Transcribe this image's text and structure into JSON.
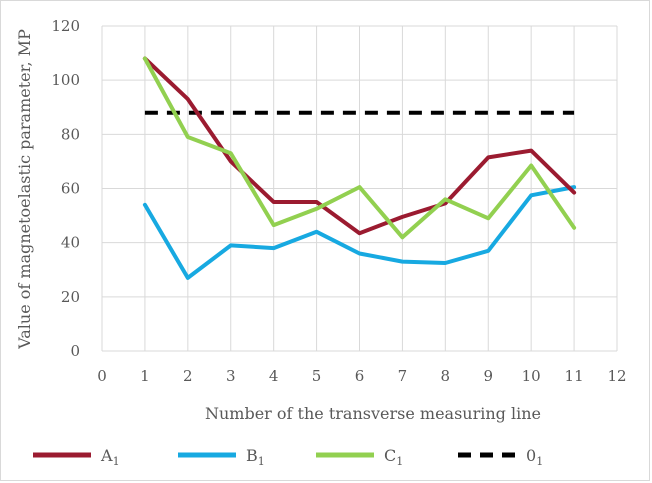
{
  "chart_data": {
    "type": "line",
    "title": "",
    "xlabel": "Number of the transverse measuring line",
    "ylabel": "Value of magnetoelastic parameter, MP",
    "xlim": [
      0,
      12
    ],
    "ylim": [
      0,
      120
    ],
    "x_ticks": [
      "0",
      "1",
      "2",
      "3",
      "4",
      "5",
      "6",
      "7",
      "8",
      "9",
      "10",
      "11",
      "12"
    ],
    "y_ticks": [
      "0",
      "20",
      "40",
      "60",
      "80",
      "100",
      "120"
    ],
    "grid": "vertical and horizontal",
    "legend_position": "bottom",
    "x": [
      1,
      2,
      3,
      4,
      5,
      6,
      7,
      8,
      9,
      10,
      11
    ],
    "series": [
      {
        "name": "A",
        "subscript": "1",
        "color": "#9b1b30",
        "dashed": false,
        "values": [
          108,
          93,
          70,
          55,
          55,
          43.5,
          49.5,
          54.5,
          71.5,
          74,
          58.5
        ]
      },
      {
        "name": "B",
        "subscript": "1",
        "color": "#17a9e1",
        "dashed": false,
        "values": [
          54,
          27,
          39,
          38,
          44,
          36,
          33,
          32.5,
          37,
          57.5,
          60.5
        ]
      },
      {
        "name": "C",
        "subscript": "1",
        "color": "#92d050",
        "dashed": false,
        "values": [
          108,
          79,
          73,
          46.5,
          52.5,
          60.5,
          42,
          56,
          49,
          68.5,
          45.5
        ]
      },
      {
        "name": "0",
        "subscript": "1",
        "color": "#000000",
        "dashed": true,
        "values": [
          88,
          88,
          88,
          88,
          88,
          88,
          88,
          88,
          88,
          88,
          88
        ]
      }
    ]
  }
}
